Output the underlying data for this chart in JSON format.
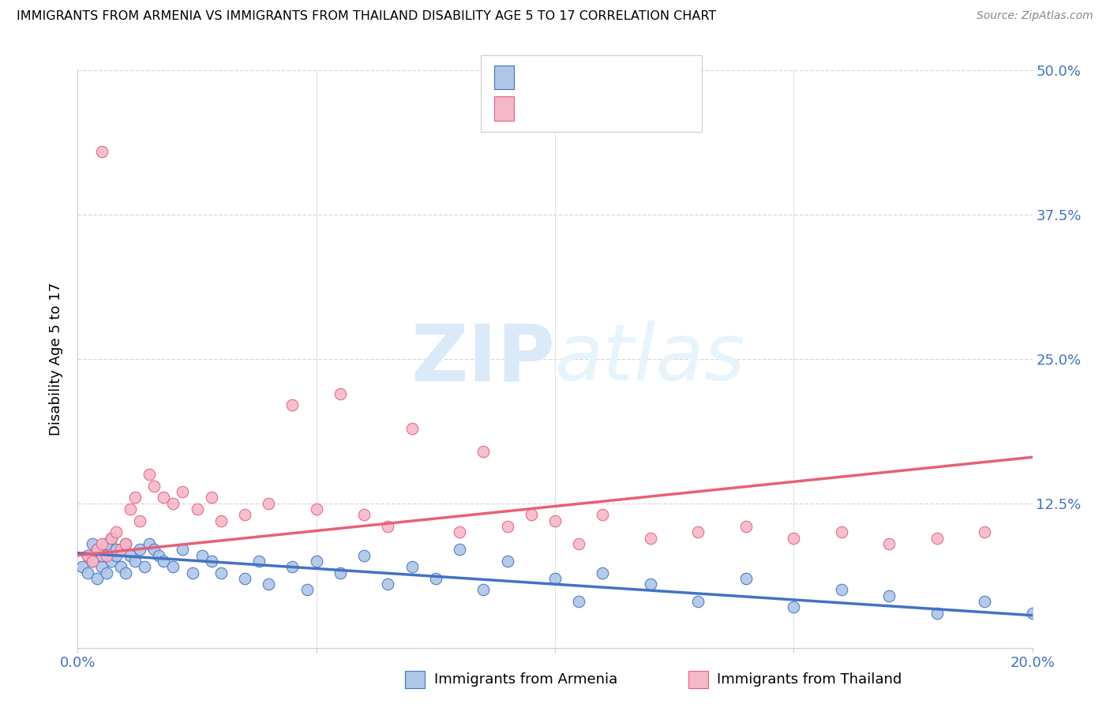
{
  "title": "IMMIGRANTS FROM ARMENIA VS IMMIGRANTS FROM THAILAND DISABILITY AGE 5 TO 17 CORRELATION CHART",
  "source": "Source: ZipAtlas.com",
  "ylabel": "Disability Age 5 to 17",
  "xlim": [
    0.0,
    0.2
  ],
  "ylim": [
    0.0,
    0.5
  ],
  "color_armenia": "#aec6e8",
  "color_armenia_line": "#4472c4",
  "color_thailand": "#f4b8c8",
  "color_thailand_line": "#e8607a",
  "color_blue_text": "#4472c4",
  "watermark_color": "#daeaf8",
  "background_color": "#ffffff",
  "grid_color": "#d8d8d8",
  "armenia_x": [
    0.001,
    0.002,
    0.002,
    0.003,
    0.003,
    0.004,
    0.004,
    0.005,
    0.005,
    0.006,
    0.006,
    0.007,
    0.007,
    0.008,
    0.008,
    0.009,
    0.01,
    0.01,
    0.011,
    0.012,
    0.013,
    0.014,
    0.015,
    0.016,
    0.017,
    0.018,
    0.02,
    0.022,
    0.024,
    0.026,
    0.028,
    0.03,
    0.035,
    0.038,
    0.04,
    0.045,
    0.048,
    0.05,
    0.055,
    0.06,
    0.065,
    0.07,
    0.075,
    0.08,
    0.085,
    0.09,
    0.1,
    0.105,
    0.11,
    0.12,
    0.13,
    0.14,
    0.15,
    0.16,
    0.17,
    0.18,
    0.19,
    0.2
  ],
  "armenia_y": [
    0.07,
    0.065,
    0.08,
    0.075,
    0.09,
    0.06,
    0.085,
    0.07,
    0.08,
    0.065,
    0.09,
    0.075,
    0.095,
    0.08,
    0.085,
    0.07,
    0.09,
    0.065,
    0.08,
    0.075,
    0.085,
    0.07,
    0.09,
    0.085,
    0.08,
    0.075,
    0.07,
    0.085,
    0.065,
    0.08,
    0.075,
    0.065,
    0.06,
    0.075,
    0.055,
    0.07,
    0.05,
    0.075,
    0.065,
    0.08,
    0.055,
    0.07,
    0.06,
    0.085,
    0.05,
    0.075,
    0.06,
    0.04,
    0.065,
    0.055,
    0.04,
    0.06,
    0.035,
    0.05,
    0.045,
    0.03,
    0.04,
    0.03
  ],
  "thailand_x": [
    0.002,
    0.003,
    0.004,
    0.005,
    0.005,
    0.006,
    0.007,
    0.008,
    0.009,
    0.01,
    0.011,
    0.012,
    0.013,
    0.015,
    0.016,
    0.018,
    0.02,
    0.022,
    0.025,
    0.028,
    0.03,
    0.035,
    0.04,
    0.045,
    0.05,
    0.055,
    0.06,
    0.065,
    0.07,
    0.08,
    0.085,
    0.09,
    0.095,
    0.1,
    0.105,
    0.11,
    0.12,
    0.13,
    0.14,
    0.15,
    0.16,
    0.17,
    0.18,
    0.19
  ],
  "thailand_y": [
    0.08,
    0.075,
    0.085,
    0.43,
    0.09,
    0.08,
    0.095,
    0.1,
    0.085,
    0.09,
    0.12,
    0.13,
    0.11,
    0.15,
    0.14,
    0.13,
    0.125,
    0.135,
    0.12,
    0.13,
    0.11,
    0.115,
    0.125,
    0.21,
    0.12,
    0.22,
    0.115,
    0.105,
    0.19,
    0.1,
    0.17,
    0.105,
    0.115,
    0.11,
    0.09,
    0.115,
    0.095,
    0.1,
    0.105,
    0.095,
    0.1,
    0.09,
    0.095,
    0.1
  ],
  "arm_line_x": [
    0.0,
    0.2
  ],
  "arm_line_y": [
    0.082,
    0.028
  ],
  "thai_line_x": [
    0.0,
    0.2
  ],
  "thai_line_y": [
    0.08,
    0.165
  ]
}
